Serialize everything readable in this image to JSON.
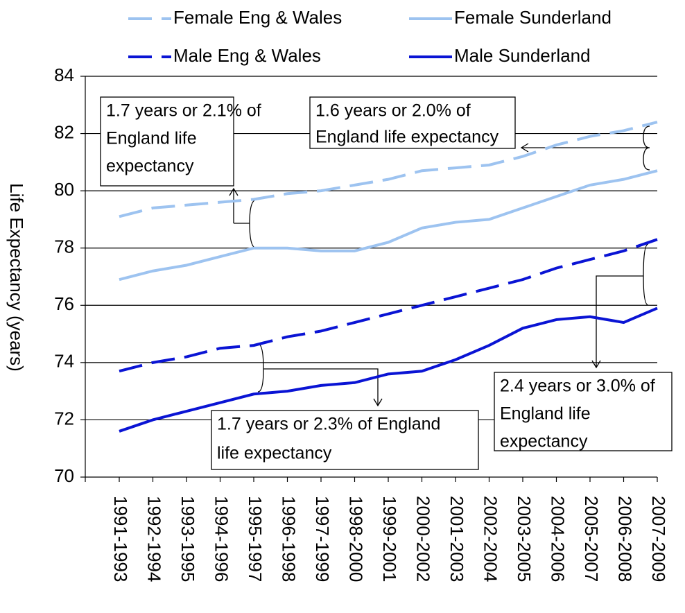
{
  "chart_data": {
    "type": "line",
    "categories": [
      "1991-1993",
      "1992-1994",
      "1993-1995",
      "1994-1996",
      "1995-1997",
      "1996-1998",
      "1997-1999",
      "1998-2000",
      "1999-2001",
      "2000-2002",
      "2001-2003",
      "2002-2004",
      "2003-2005",
      "2004-2006",
      "2005-2007",
      "2006-2008",
      "2007-2009"
    ],
    "y_label": "Life Expectancy (years)",
    "ylim": [
      70,
      84
    ],
    "yticks": [
      70,
      72,
      74,
      76,
      78,
      80,
      82,
      84
    ],
    "grid": true,
    "series": [
      {
        "name": "Female Eng & Wales",
        "color": "#9dc3f0",
        "dash": true,
        "values": [
          79.1,
          79.4,
          79.5,
          79.6,
          79.7,
          79.9,
          80.0,
          80.2,
          80.4,
          80.7,
          80.8,
          80.9,
          81.2,
          81.6,
          81.9,
          82.1,
          82.4
        ]
      },
      {
        "name": "Female Sunderland",
        "color": "#9dc3f0",
        "dash": false,
        "values": [
          76.9,
          77.2,
          77.4,
          77.7,
          78.0,
          78.0,
          77.9,
          77.9,
          78.2,
          78.7,
          78.9,
          79.0,
          79.4,
          79.8,
          80.2,
          80.4,
          80.7
        ]
      },
      {
        "name": "Male Eng & Wales",
        "color": "#0a14d4",
        "dash": true,
        "values": [
          73.7,
          74.0,
          74.2,
          74.5,
          74.6,
          74.9,
          75.1,
          75.4,
          75.7,
          76.0,
          76.3,
          76.6,
          76.9,
          77.3,
          77.6,
          77.9,
          78.3
        ]
      },
      {
        "name": "Male Sunderland",
        "color": "#0a14d4",
        "dash": false,
        "values": [
          71.6,
          72.0,
          72.3,
          72.6,
          72.9,
          73.0,
          73.2,
          73.3,
          73.6,
          73.7,
          74.1,
          74.6,
          75.2,
          75.5,
          75.6,
          75.4,
          75.9
        ]
      }
    ],
    "annotations": [
      {
        "lines": [
          "1.7 years or 2.1% of",
          "England life",
          "expectancy"
        ]
      },
      {
        "lines": [
          "1.6 years or 2.0% of",
          "England life expectancy"
        ]
      },
      {
        "lines": [
          "1.7 years or 2.3% of England",
          "life expectancy"
        ]
      },
      {
        "lines": [
          "2.4 years or 3.0% of",
          "England life",
          "expectancy"
        ]
      }
    ]
  }
}
